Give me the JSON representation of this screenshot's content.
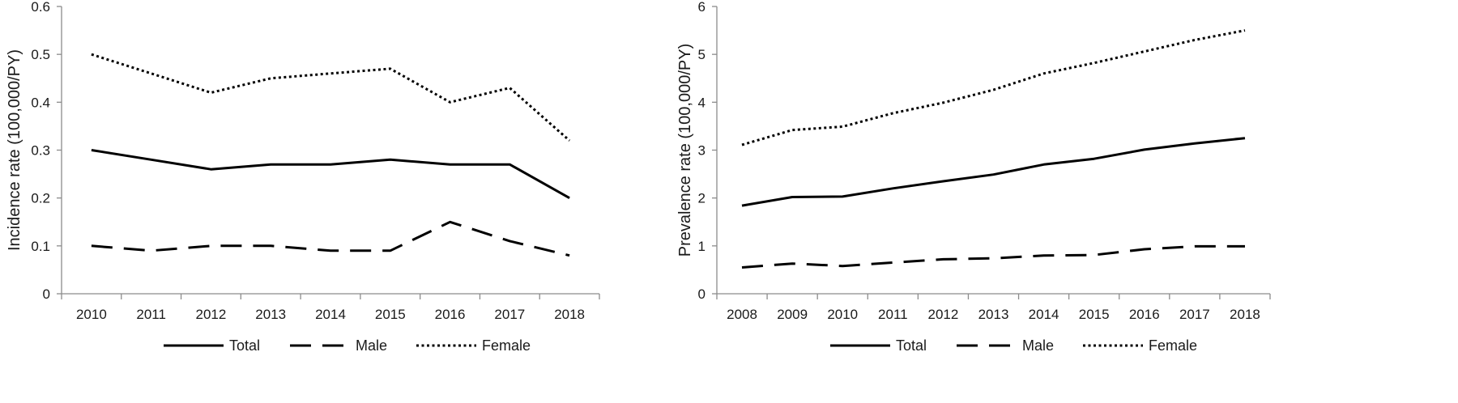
{
  "chart_data": [
    {
      "type": "line",
      "title": "",
      "xlabel": "",
      "ylabel": "Incidence rate (100,000/PY)",
      "ylim": [
        0,
        0.6
      ],
      "yticks": [
        "0",
        "0.1",
        "0.2",
        "0.3",
        "0.4",
        "0.5",
        "0.6"
      ],
      "grid": false,
      "legend": "bottom",
      "categories": [
        "2010",
        "2011",
        "2012",
        "2013",
        "2014",
        "2015",
        "2016",
        "2017",
        "2018"
      ],
      "series": [
        {
          "name": "Total",
          "style": "solid",
          "values": [
            0.3,
            0.28,
            0.26,
            0.27,
            0.27,
            0.28,
            0.27,
            0.27,
            0.2
          ]
        },
        {
          "name": "Male",
          "style": "dashed",
          "values": [
            0.1,
            0.09,
            0.1,
            0.1,
            0.09,
            0.09,
            0.15,
            0.11,
            0.08
          ]
        },
        {
          "name": "Female",
          "style": "dotted",
          "values": [
            0.5,
            0.46,
            0.42,
            0.45,
            0.46,
            0.47,
            0.4,
            0.43,
            0.32
          ]
        }
      ]
    },
    {
      "type": "line",
      "title": "",
      "xlabel": "",
      "ylabel": "Prevalence rate (100,000/PY)",
      "ylim": [
        0,
        6
      ],
      "yticks": [
        "0",
        "1",
        "2",
        "3",
        "4",
        "5",
        "6"
      ],
      "grid": false,
      "legend": "bottom",
      "categories": [
        "2008",
        "2009",
        "2010",
        "2011",
        "2012",
        "2013",
        "2014",
        "2015",
        "2016",
        "2017",
        "2018"
      ],
      "series": [
        {
          "name": "Total",
          "style": "solid",
          "values": [
            1.84,
            2.02,
            2.03,
            2.2,
            2.35,
            2.49,
            2.7,
            2.82,
            3.01,
            3.14,
            3.25
          ]
        },
        {
          "name": "Male",
          "style": "dashed",
          "values": [
            0.55,
            0.63,
            0.58,
            0.65,
            0.72,
            0.74,
            0.8,
            0.81,
            0.93,
            0.99,
            0.99
          ]
        },
        {
          "name": "Female",
          "style": "dotted",
          "values": [
            3.11,
            3.42,
            3.49,
            3.77,
            3.99,
            4.26,
            4.6,
            4.82,
            5.06,
            5.3,
            5.5
          ]
        }
      ]
    }
  ]
}
